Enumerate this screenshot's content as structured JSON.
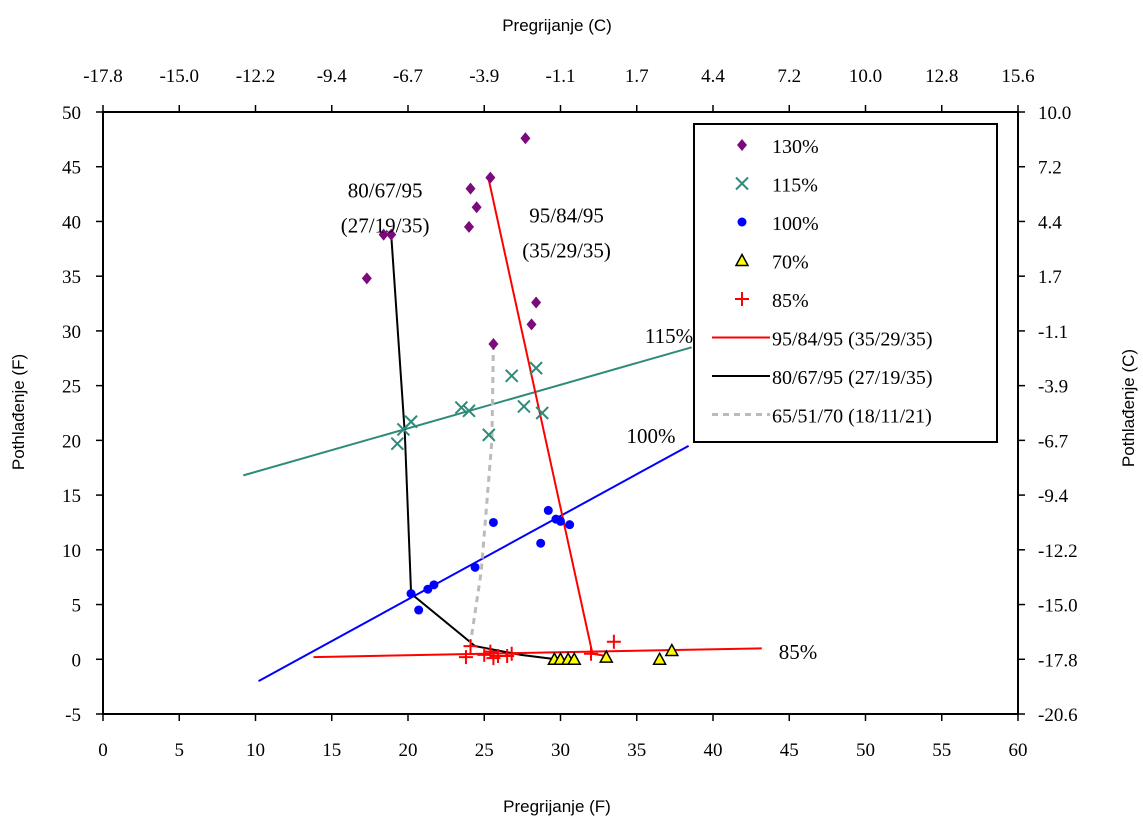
{
  "chart_data": {
    "type": "scatter",
    "x_bottom": {
      "label": "Pregrijanje (F)",
      "range": [
        0,
        60
      ],
      "ticks": [
        "0",
        "5",
        "10",
        "15",
        "20",
        "25",
        "30",
        "35",
        "40",
        "45",
        "50",
        "55",
        "60"
      ]
    },
    "x_top": {
      "label": "Pregrijanje (C)",
      "ticks": [
        "-17.8",
        "-15.0",
        "-12.2",
        "-9.4",
        "-6.7",
        "-3.9",
        "-1.1",
        "1.7",
        "4.4",
        "7.2",
        "10.0",
        "12.8",
        "15.6"
      ]
    },
    "y_left": {
      "label": "Pothlađenje (F)",
      "range": [
        -5,
        50
      ],
      "ticks": [
        "50",
        "45",
        "40",
        "35",
        "30",
        "25",
        "20",
        "15",
        "10",
        "5",
        "0",
        "-5"
      ]
    },
    "y_right": {
      "label": "Pothlađenje (C)",
      "ticks": [
        "10.0",
        "7.2",
        "4.4",
        "1.7",
        "-1.1",
        "-3.9",
        "-6.7",
        "-9.4",
        "-12.2",
        "-15.0",
        "-17.8",
        "-20.6"
      ]
    },
    "grid": false,
    "legend_position": "top-right",
    "series": [
      {
        "name": "130%",
        "kind": "points",
        "marker": "diamond",
        "color": "#7B0A7B",
        "points": [
          [
            17.3,
            34.8
          ],
          [
            18.4,
            38.8
          ],
          [
            18.9,
            38.8
          ],
          [
            24.0,
            39.5
          ],
          [
            24.1,
            43.0
          ],
          [
            24.5,
            41.3
          ],
          [
            25.4,
            44.0
          ],
          [
            25.6,
            28.8
          ],
          [
            27.7,
            47.6
          ],
          [
            28.1,
            30.6
          ],
          [
            28.4,
            32.6
          ]
        ]
      },
      {
        "name": "115%",
        "kind": "points",
        "marker": "x",
        "color": "#2E8B7A",
        "points": [
          [
            19.3,
            19.7
          ],
          [
            19.7,
            21.0
          ],
          [
            20.2,
            21.7
          ],
          [
            23.5,
            23.0
          ],
          [
            24.0,
            22.7
          ],
          [
            25.3,
            20.5
          ],
          [
            26.8,
            25.9
          ],
          [
            27.6,
            23.1
          ],
          [
            28.4,
            26.6
          ],
          [
            28.8,
            22.5
          ]
        ]
      },
      {
        "name": "100%",
        "kind": "points",
        "marker": "dot",
        "color": "#0000FF",
        "points": [
          [
            20.2,
            6.0
          ],
          [
            20.7,
            4.5
          ],
          [
            21.3,
            6.4
          ],
          [
            21.7,
            6.8
          ],
          [
            24.4,
            8.4
          ],
          [
            25.6,
            12.5
          ],
          [
            28.7,
            10.6
          ],
          [
            29.2,
            13.6
          ],
          [
            29.7,
            12.8
          ],
          [
            30.0,
            12.6
          ],
          [
            30.6,
            12.3
          ]
        ]
      },
      {
        "name": "70%",
        "kind": "points",
        "marker": "triangle",
        "color": "#FFFF00",
        "points": [
          [
            29.6,
            0.0
          ],
          [
            30.0,
            0.0
          ],
          [
            30.5,
            0.0
          ],
          [
            30.9,
            0.0
          ],
          [
            33.0,
            0.2
          ],
          [
            36.5,
            0.0
          ],
          [
            37.3,
            0.8
          ]
        ]
      },
      {
        "name": "85%",
        "kind": "points",
        "marker": "plus",
        "color": "#FF0000",
        "points": [
          [
            23.8,
            0.2
          ],
          [
            24.1,
            1.2
          ],
          [
            25.0,
            0.4
          ],
          [
            25.4,
            0.7
          ],
          [
            25.6,
            0.1
          ],
          [
            25.9,
            0.3
          ],
          [
            26.5,
            0.3
          ],
          [
            26.8,
            0.5
          ],
          [
            32.0,
            0.5
          ],
          [
            33.5,
            1.6
          ]
        ]
      },
      {
        "name": "95/84/95 (35/29/35)",
        "kind": "line",
        "color": "#FF0000",
        "dash": "",
        "points": [
          [
            25.3,
            43.8
          ],
          [
            32.1,
            0.5
          ],
          [
            33.0,
            0.3
          ]
        ]
      },
      {
        "name": "80/67/95 (27/19/35)",
        "kind": "line",
        "color": "#000000",
        "dash": "",
        "points": [
          [
            18.9,
            38.8
          ],
          [
            19.8,
            20.5
          ],
          [
            20.2,
            6.0
          ],
          [
            24.4,
            1.2
          ],
          [
            27.4,
            0.4
          ],
          [
            29.7,
            0.0
          ]
        ]
      },
      {
        "name": "65/51/70 (18/11/21)",
        "kind": "line",
        "color": "#BBBBBB",
        "dash": "6,5",
        "points": [
          [
            25.6,
            28.8
          ],
          [
            25.5,
            20.0
          ],
          [
            24.8,
            8.0
          ],
          [
            24.1,
            1.5
          ]
        ]
      }
    ],
    "trend_lines": [
      {
        "label": "115%",
        "color": "#2E8B7A",
        "points": [
          [
            9.2,
            16.8
          ],
          [
            38.6,
            28.5
          ]
        ]
      },
      {
        "label": "100%",
        "color": "#0000FF",
        "points": [
          [
            10.2,
            -2.0
          ],
          [
            38.4,
            19.5
          ]
        ]
      },
      {
        "label": "85%",
        "color": "#FF0000",
        "points": [
          [
            13.8,
            0.2
          ],
          [
            43.2,
            1.0
          ]
        ]
      }
    ],
    "annotations": [
      {
        "lines": [
          "80/67/95",
          "(27/19/35)"
        ],
        "x": 18.5,
        "y": 42.2
      },
      {
        "lines": [
          "95/84/95",
          "(35/29/35)"
        ],
        "x": 30.4,
        "y": 39.9
      }
    ]
  }
}
